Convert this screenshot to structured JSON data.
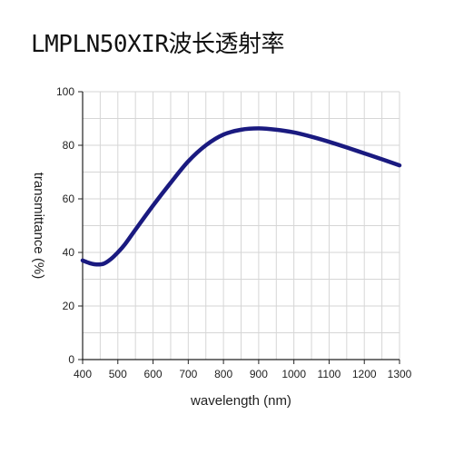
{
  "page_title": "LMPLN50XIR波长透射率",
  "chart_data": {
    "type": "line",
    "title": "LMPLN50XIR波长透射率",
    "xlabel": "wavelength (nm)",
    "ylabel": "transmittance (%)",
    "xlim": [
      400,
      1300
    ],
    "ylim": [
      0,
      100
    ],
    "xticks": [
      400,
      500,
      600,
      700,
      800,
      900,
      1000,
      1100,
      1200,
      1300
    ],
    "yticks": [
      0,
      20,
      40,
      60,
      80,
      100
    ],
    "grid": true,
    "series": [
      {
        "color": "#1a1a80",
        "x": [
          400,
          420,
          440,
          460,
          480,
          500,
          520,
          550,
          600,
          650,
          700,
          750,
          800,
          850,
          900,
          950,
          1000,
          1050,
          1100,
          1150,
          1200,
          1250,
          1300
        ],
        "y": [
          37,
          36,
          35.5,
          35.8,
          37.5,
          40,
          43,
          48.5,
          57.5,
          66,
          74,
          80,
          84,
          85.8,
          86.3,
          85.8,
          84.8,
          83.2,
          81.3,
          79.2,
          77,
          74.8,
          72.5
        ]
      }
    ]
  }
}
